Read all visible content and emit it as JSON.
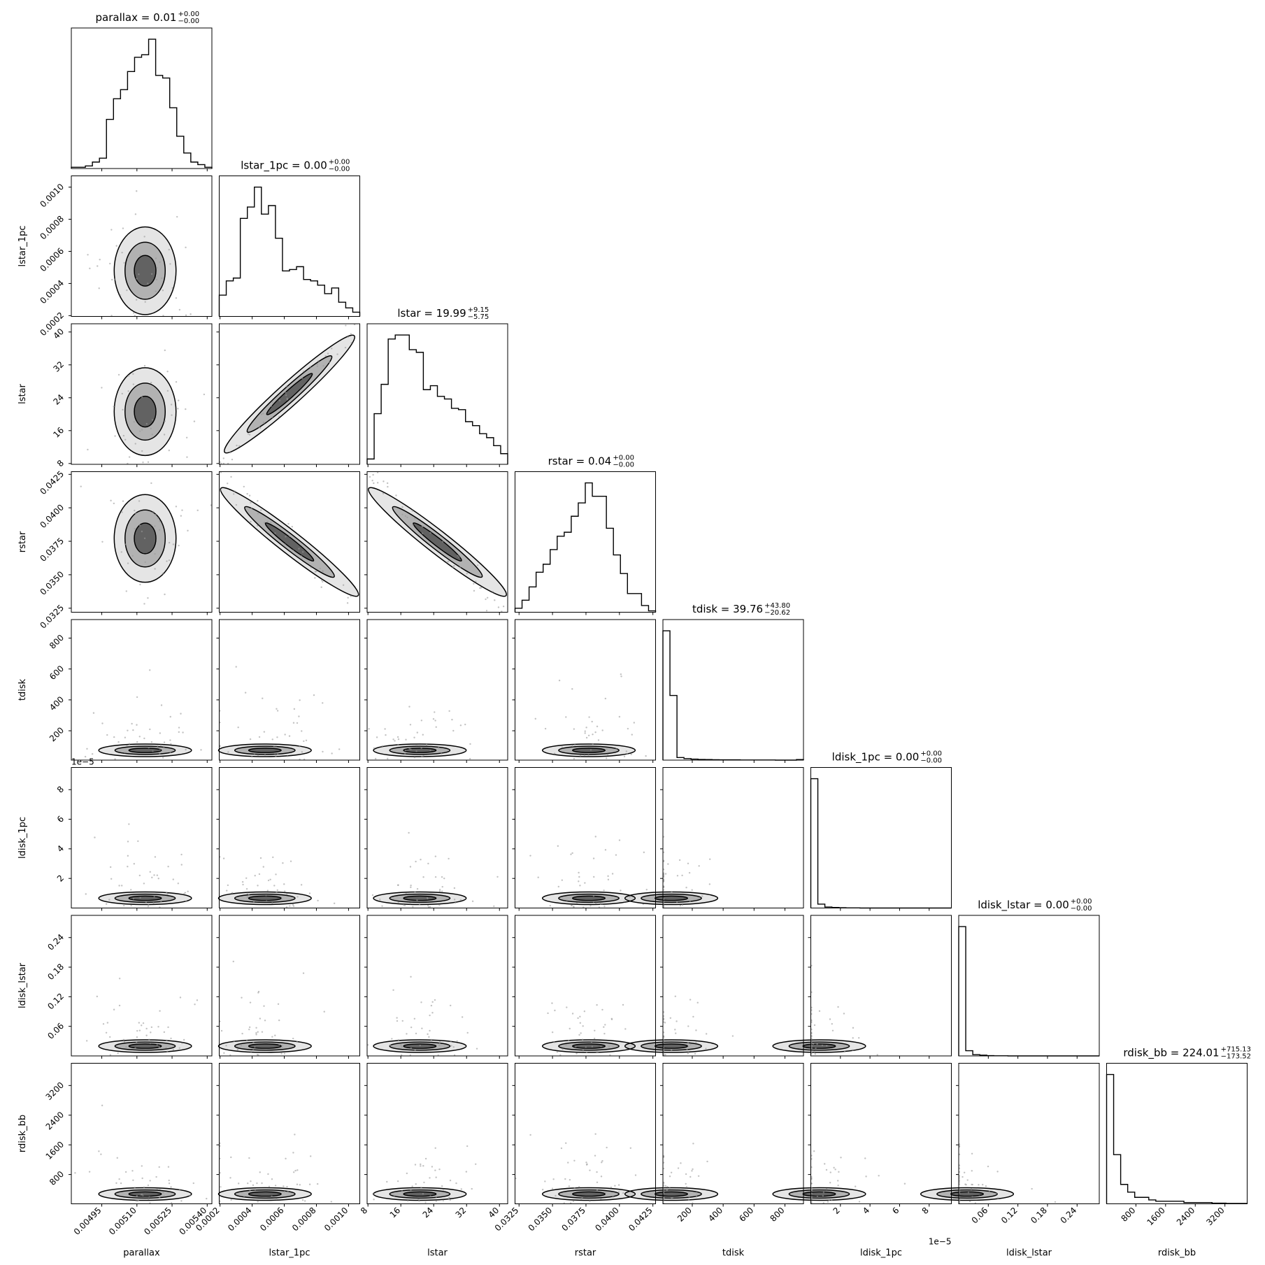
{
  "chart_data": {
    "type": "corner",
    "parameters": [
      {
        "name": "parallax",
        "label": "parallax",
        "title": "parallax = 0.01",
        "title_sup": "+0.00",
        "title_sub": "−0.00",
        "range": [
          0.00482,
          0.00542
        ],
        "ticks": [
          0.00495,
          0.0051,
          0.00525,
          0.0054
        ],
        "tick_labels": [
          "0.00495",
          "0.00510",
          "0.00525",
          "0.00540"
        ],
        "hist": [
          0.01,
          0.01,
          0.02,
          0.05,
          0.08,
          0.38,
          0.54,
          0.61,
          0.75,
          0.86,
          0.88,
          1.0,
          0.72,
          0.7,
          0.47,
          0.25,
          0.12,
          0.05,
          0.03,
          0.01
        ]
      },
      {
        "name": "lstar_1pc",
        "label": "lstar_1pc",
        "title": "lstar_1pc = 0.00",
        "title_sup": "+0.00",
        "title_sub": "−0.00",
        "range": [
          0.000195,
          0.00107
        ],
        "ticks": [
          0.0002,
          0.0004,
          0.0006,
          0.0008,
          0.001
        ],
        "tick_labels": [
          "0.0002",
          "0.0004",
          "0.0006",
          "0.0008",
          "0.0010"
        ],
        "hist": [
          0.15,
          0.25,
          0.27,
          0.69,
          0.77,
          0.91,
          0.72,
          0.78,
          0.55,
          0.32,
          0.33,
          0.35,
          0.26,
          0.25,
          0.22,
          0.16,
          0.2,
          0.1,
          0.06,
          0.03
        ]
      },
      {
        "name": "lstar",
        "label": "lstar",
        "title": "lstar = 19.99",
        "title_sup": "+9.15",
        "title_sub": "−5.75",
        "range": [
          7.8,
          42
        ],
        "ticks": [
          8,
          16,
          24,
          32,
          40
        ],
        "tick_labels": [
          "8",
          "16",
          "24",
          "32",
          "40"
        ],
        "hist": [
          0.04,
          0.38,
          0.6,
          0.94,
          0.97,
          0.97,
          0.86,
          0.84,
          0.56,
          0.59,
          0.51,
          0.49,
          0.42,
          0.41,
          0.32,
          0.29,
          0.23,
          0.2,
          0.14,
          0.08
        ]
      },
      {
        "name": "rstar",
        "label": "rstar",
        "title": "rstar = 0.04",
        "title_sup": "+0.00",
        "title_sub": "−0.00",
        "range": [
          0.0322,
          0.0427
        ],
        "ticks": [
          0.0325,
          0.035,
          0.0375,
          0.04,
          0.0425
        ],
        "tick_labels": [
          "0.0325",
          "0.0350",
          "0.0375",
          "0.0400",
          "0.0425"
        ],
        "hist": [
          0.03,
          0.09,
          0.19,
          0.3,
          0.36,
          0.47,
          0.57,
          0.6,
          0.72,
          0.82,
          0.97,
          0.87,
          0.87,
          0.63,
          0.43,
          0.29,
          0.14,
          0.14,
          0.05,
          0.01
        ]
      },
      {
        "name": "tdisk",
        "label": "tdisk",
        "title": "tdisk = 39.76",
        "title_sup": "+43.80",
        "title_sub": "−20.62",
        "range": [
          10,
          920
        ],
        "ticks": [
          200,
          400,
          600,
          800
        ],
        "tick_labels": [
          "200",
          "400",
          "600",
          "800"
        ],
        "hist": [
          1.0,
          0.5,
          0.02,
          0.012,
          0.008,
          0.005,
          0.004,
          0.003,
          0.002,
          0.002,
          0.002,
          0.001,
          0.001,
          0.001,
          0.001,
          0.001,
          0.0,
          0.0,
          0.0,
          0.004
        ]
      },
      {
        "name": "ldisk_1pc",
        "label": "ldisk_1pc",
        "title": "ldisk_1pc = 0.00",
        "title_sup": "+0.00",
        "title_sub": "−0.00",
        "range": [
          0,
          9.5e-06
        ],
        "ticks": [
          2e-06,
          4e-06,
          6e-06,
          8e-06
        ],
        "tick_labels": [
          "2",
          "4",
          "6",
          "8"
        ],
        "offset_text": "1e−5",
        "hist": [
          1.0,
          0.03,
          0.008,
          0.004,
          0.002,
          0.001,
          0.001,
          0.0,
          0.0,
          0.0,
          0.0,
          0.0,
          0.0,
          0.0,
          0.0,
          0.0,
          0.0,
          0.0,
          0.0,
          0.0
        ]
      },
      {
        "name": "ldisk_lstar",
        "label": "ldisk_lstar",
        "title": "ldisk_lstar = 0.00",
        "title_sup": "+0.00",
        "title_sub": "−0.00",
        "range": [
          0,
          0.285
        ],
        "ticks": [
          0.06,
          0.12,
          0.18,
          0.24
        ],
        "tick_labels": [
          "0.06",
          "0.12",
          "0.18",
          "0.24"
        ],
        "hist": [
          1.0,
          0.04,
          0.01,
          0.006,
          0.002,
          0.001,
          0.001,
          0.0,
          0.0,
          0.0,
          0.0,
          0.0,
          0.0,
          0.0,
          0.0,
          0.0,
          0.0,
          0.0,
          0.0,
          0.0
        ]
      },
      {
        "name": "rdisk_bb",
        "label": "rdisk_bb",
        "title": "rdisk_bb = 224.01",
        "title_sup": "+715.13",
        "title_sub": "−173.52",
        "range": [
          10,
          3800
        ],
        "ticks": [
          800,
          1600,
          2400,
          3200
        ],
        "tick_labels": [
          "800",
          "1600",
          "2400",
          "3200"
        ],
        "hist": [
          1.0,
          0.38,
          0.15,
          0.09,
          0.05,
          0.05,
          0.03,
          0.02,
          0.02,
          0.02,
          0.02,
          0.01,
          0.01,
          0.01,
          0.01,
          0.005,
          0.005,
          0.003,
          0.003,
          0.003
        ]
      }
    ]
  }
}
